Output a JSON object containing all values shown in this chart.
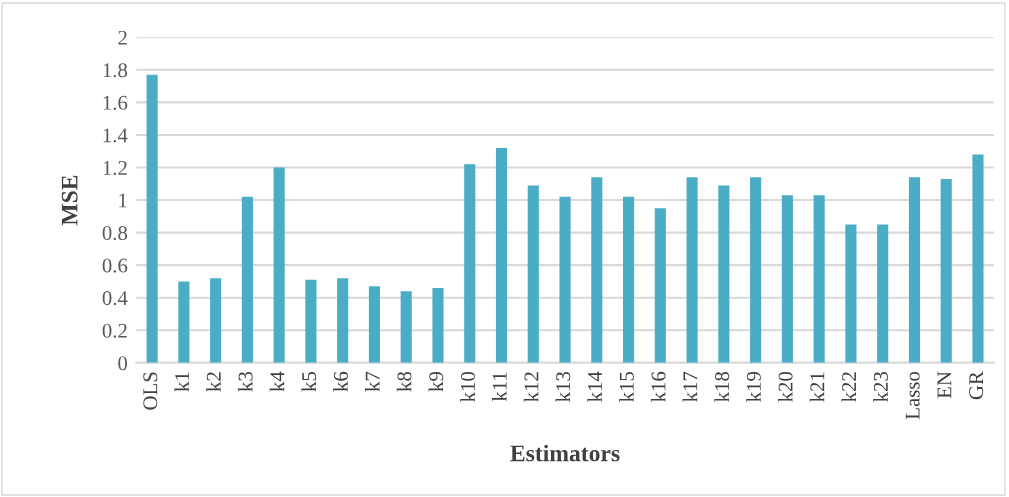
{
  "chart_data": {
    "type": "bar",
    "xlabel": "Estimators",
    "ylabel": "MSE",
    "categories": [
      "OLS",
      "k1",
      "k2",
      "k3",
      "k4",
      "k5",
      "k6",
      "k7",
      "k8",
      "k9",
      "k10",
      "k11",
      "k12",
      "k13",
      "k14",
      "k15",
      "k16",
      "k17",
      "k18",
      "k19",
      "k20",
      "k21",
      "k22",
      "k23",
      "Lasso",
      "EN",
      "GR"
    ],
    "values": [
      1.77,
      0.5,
      0.52,
      1.02,
      1.2,
      0.51,
      0.52,
      0.47,
      0.44,
      0.46,
      1.22,
      1.32,
      1.09,
      1.02,
      1.14,
      1.02,
      0.95,
      1.14,
      1.09,
      1.14,
      1.03,
      1.03,
      0.85,
      0.85,
      1.14,
      1.13,
      1.28
    ],
    "color": "#4bacc6",
    "ylim": [
      0,
      2
    ],
    "yticks": [
      0,
      {
        "value": 0.2,
        "label": "0.2"
      },
      {
        "value": 0.4,
        "label": "0.4"
      },
      {
        "value": 0.6,
        "label": "0.6"
      },
      {
        "value": 0.8,
        "label": "0.8"
      },
      1,
      {
        "value": 1.2,
        "label": "1.2"
      },
      {
        "value": 1.4,
        "label": "1.4"
      },
      {
        "value": 1.6,
        "label": "1.6"
      },
      {
        "value": 1.8,
        "label": "1.8"
      },
      2
    ],
    "grid": "y"
  }
}
